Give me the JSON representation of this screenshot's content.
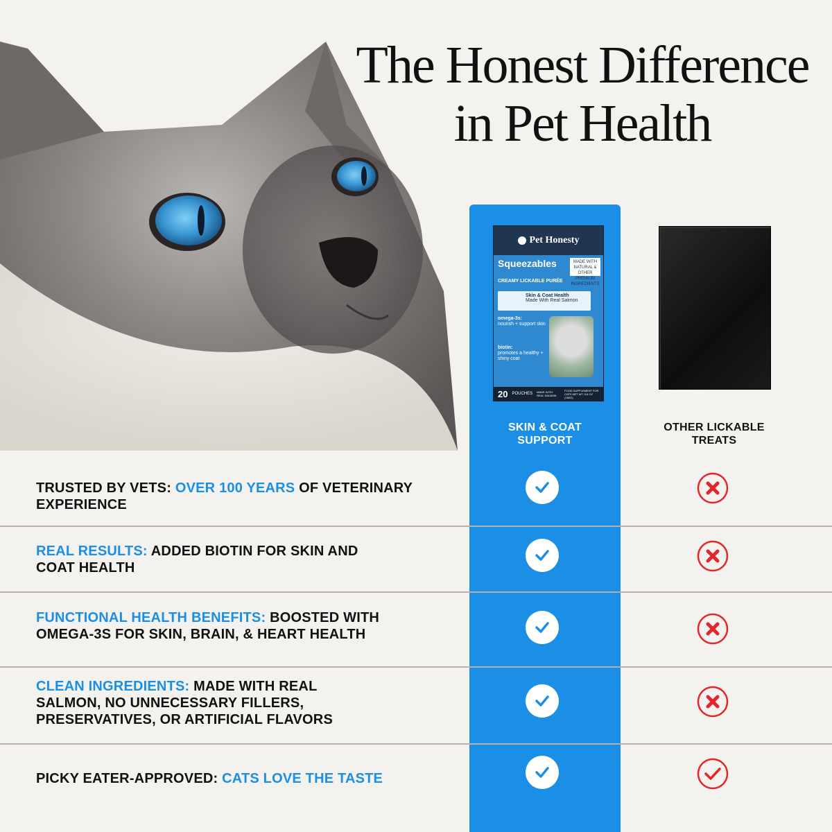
{
  "header": {
    "title_line1": "The Honest Difference",
    "title_line2": "in Pet Health"
  },
  "product": {
    "brand": "Pet Honesty",
    "name": "Squeezables",
    "subtitle": "CREAMY LICKABLE PURÉE",
    "badge": "MADE WITH NATURAL & OTHER PREMIUM INGREDIENTS",
    "banner_title": "Skin & Coat Health",
    "banner_sub": "Made With Real Salmon",
    "feature1_title": "omega-3s:",
    "feature1_text": "nourish + support skin",
    "feature2_title": "biotin:",
    "feature2_text": "promotes a healthy + shiny coat",
    "count": "20",
    "count_unit": "POUCHES",
    "footer_mid": "MADE WITH REAL SALMON",
    "footer_right": "FOOD SUPPLEMENT FOR CATS NET WT. 5.6 OZ (160G)"
  },
  "columns": {
    "ours": "SKIN & COAT SUPPORT",
    "others": "OTHER LICKABLE TREATS"
  },
  "rows": [
    {
      "lead": "TRUSTED BY VETS: ",
      "highlight": "OVER 100 YEARS",
      "rest": " OF VETERINARY EXPERIENCE",
      "ours": "check",
      "others": "x"
    },
    {
      "lead": "",
      "highlight": "REAL RESULTS: ",
      "rest": " ADDED BIOTIN FOR SKIN AND COAT HEALTH",
      "ours": "check",
      "others": "x"
    },
    {
      "lead": "",
      "highlight": "FUNCTIONAL HEALTH BENEFITS:",
      "rest": " BOOSTED WITH OMEGA-3S FOR SKIN, BRAIN, & HEART HEALTH",
      "ours": "check",
      "others": "x"
    },
    {
      "lead": "",
      "highlight": "CLEAN INGREDIENTS:",
      "rest": " MADE WITH REAL SALMON, NO UNNECESSARY FILLERS, PRESERVATIVES, OR ARTIFICIAL FLAVORS",
      "ours": "check",
      "others": "x"
    },
    {
      "lead": "PICKY EATER-APPROVED: ",
      "highlight": "CATS LOVE THE TASTE",
      "rest": "",
      "ours": "check",
      "others": "check"
    }
  ],
  "colors": {
    "accent": "#1b8fe6",
    "cross": "#e2262b",
    "text": "#111111",
    "background": "#f4f2ee"
  }
}
